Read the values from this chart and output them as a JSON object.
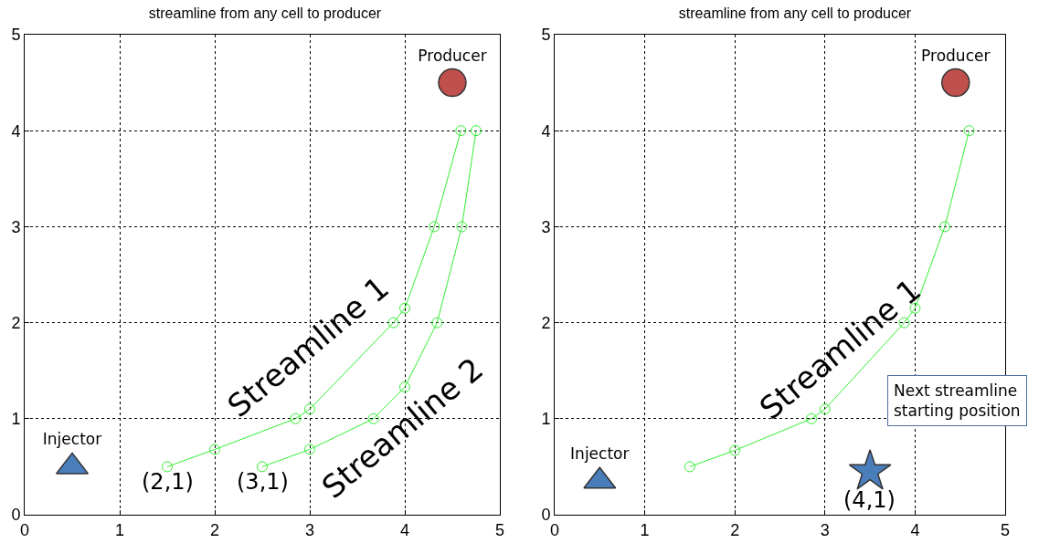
{
  "chart_data": [
    {
      "type": "line",
      "title": "streamline from any cell to producer",
      "xlim": [
        0,
        5
      ],
      "ylim": [
        0,
        5
      ],
      "xticks": [
        0,
        1,
        2,
        3,
        4,
        5
      ],
      "yticks": [
        0,
        1,
        2,
        3,
        4,
        5
      ],
      "grid": true,
      "line_style": "solid",
      "series": [
        {
          "color": "#33ee33",
          "marker": "circle",
          "x": [
            1.5,
            2,
            2.85,
            3,
            3.88,
            4,
            4.31,
            4.59
          ],
          "values": [
            0.5,
            0.68,
            1.0,
            1.1,
            2.0,
            2.15,
            3.0,
            4.0
          ]
        },
        {
          "color": "#33ee33",
          "marker": "circle",
          "x": [
            2.5,
            3,
            3.67,
            4,
            4.34,
            4.6,
            4.75
          ],
          "values": [
            0.5,
            0.68,
            1.0,
            1.33,
            2.0,
            3.0,
            4.0
          ]
        },
        {
          "type": "scatter",
          "name": "Injector",
          "color": "#4a7ebb",
          "marker": "triangle",
          "x": [
            0.5
          ],
          "values": [
            0.5
          ]
        },
        {
          "type": "scatter",
          "name": "Producer",
          "color": "#c0504d",
          "marker": "circle",
          "x": [
            4.5
          ],
          "values": [
            4.5
          ]
        }
      ],
      "annotations": [
        {
          "text": "Streamline 1",
          "x": 3,
          "y": 1.1
        },
        {
          "text": "Streamline 2",
          "x": 4,
          "y": 1.33
        },
        {
          "text": "(2,1)",
          "x": 1.5,
          "y": 0.5
        },
        {
          "text": "(3,1)",
          "x": 2.5,
          "y": 0.5
        }
      ]
    },
    {
      "type": "line",
      "title": "streamline from any cell to producer",
      "xlim": [
        0,
        5
      ],
      "ylim": [
        0,
        5
      ],
      "xticks": [
        0,
        1,
        2,
        3,
        4,
        5
      ],
      "yticks": [
        0,
        1,
        2,
        3,
        4,
        5
      ],
      "grid": true,
      "line_style": "solid",
      "series": [
        {
          "color": "#33ee33",
          "marker": "circle",
          "x": [
            1.5,
            2,
            2.85,
            3,
            3.88,
            4,
            4.33,
            4.6
          ],
          "values": [
            0.5,
            0.67,
            1.0,
            1.1,
            2.0,
            2.15,
            3.0,
            4.0
          ]
        },
        {
          "type": "scatter",
          "name": "Injector",
          "color": "#4a7ebb",
          "marker": "triangle",
          "x": [
            0.5
          ],
          "values": [
            0.35
          ]
        },
        {
          "type": "scatter",
          "name": "Producer",
          "color": "#c0504d",
          "marker": "circle",
          "x": [
            4.45
          ],
          "values": [
            4.5
          ]
        },
        {
          "type": "scatter",
          "color": "#4a7ebb",
          "marker": "star",
          "x": [
            3.5
          ],
          "values": [
            0.45
          ]
        }
      ],
      "annotations": [
        {
          "text": "Streamline 1",
          "x": 3,
          "y": 1.1
        },
        {
          "text": "(4,1)",
          "x": 3.5,
          "y": 0.45
        },
        "Next streamline\nstarting position"
      ]
    }
  ]
}
